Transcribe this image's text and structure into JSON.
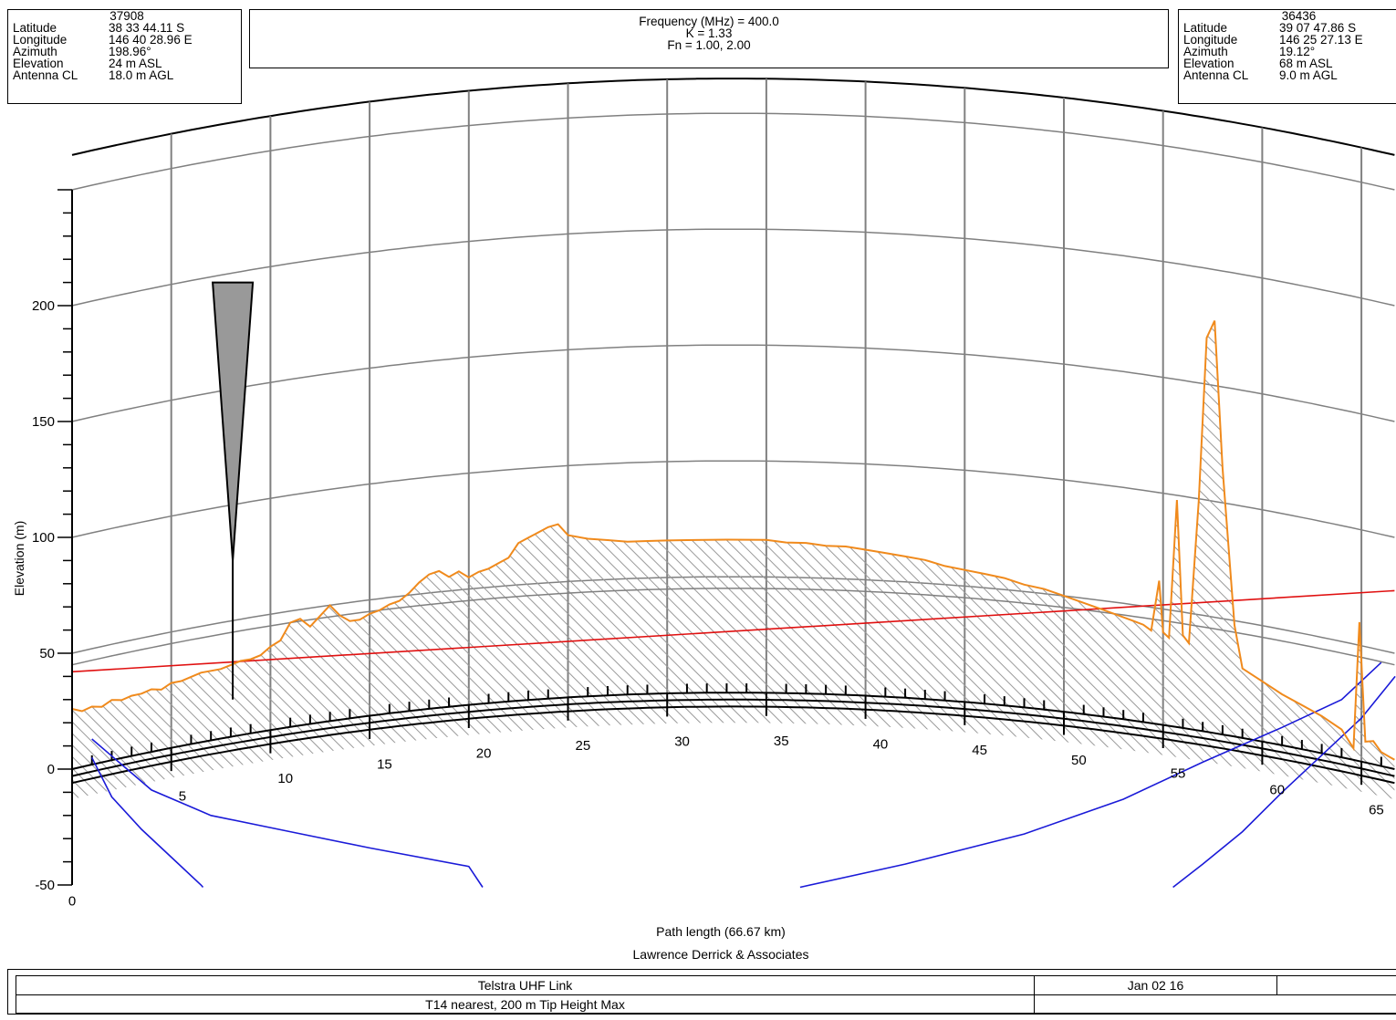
{
  "site_a": {
    "id": "37908",
    "rows": [
      {
        "label": "Latitude",
        "value": "38 33 44.11 S"
      },
      {
        "label": "Longitude",
        "value": "146 40 28.96 E"
      },
      {
        "label": "Azimuth",
        "value": "198.96°"
      },
      {
        "label": "Elevation",
        "value": "24 m ASL"
      },
      {
        "label": "Antenna CL",
        "value": "18.0 m AGL"
      }
    ]
  },
  "site_b": {
    "id": "36436",
    "rows": [
      {
        "label": "Latitude",
        "value": "39 07 47.86 S"
      },
      {
        "label": "Longitude",
        "value": "146 25 27.13 E"
      },
      {
        "label": "Azimuth",
        "value": "19.12°"
      },
      {
        "label": "Elevation",
        "value": "68 m ASL"
      },
      {
        "label": "Antenna CL",
        "value": "9.0 m AGL"
      }
    ]
  },
  "header": {
    "frequency": "Frequency (MHz) = 400.0",
    "k_factor": "K = 1.33",
    "fresnel": "Fn = 1.00, 2.00"
  },
  "footer": {
    "company": "Lawrence Derrick & Associates",
    "link_name": "Telstra UHF Link",
    "date": "Jan 02 16",
    "note": "T14 nearest, 200 m Tip Height Max"
  },
  "colors": {
    "terrain": "#f08a1c",
    "los": "#e01010",
    "fresnel": "#1a1ad8",
    "grid": "#808080",
    "antenna_fill": "#999999"
  },
  "chart_data": {
    "type": "line",
    "ylabel": "Elevation (m)",
    "xlabel": "Path length (66.67 km)",
    "x_unit": "km",
    "xlim": [
      0,
      66.67
    ],
    "ylim": [
      -50,
      250
    ],
    "y_ticks": [
      -50,
      0,
      50,
      100,
      150,
      200
    ],
    "x_ticks": [
      0,
      5,
      10,
      15,
      20,
      25,
      30,
      35,
      40,
      45,
      50,
      55,
      60,
      65
    ],
    "k_factor": 1.33,
    "earth_curvature": true,
    "fresnel_zones": [
      1.0,
      2.0
    ],
    "grid_levels": [
      0,
      50,
      100,
      150,
      200,
      250
    ],
    "los": {
      "start": [
        0,
        42
      ],
      "end": [
        66.67,
        77
      ]
    },
    "antenna_a": {
      "x": 8.1,
      "ground": 30,
      "height": 200
    },
    "series": [
      {
        "name": "Terrain",
        "x": [
          0,
          0.5,
          1,
          1.5,
          2,
          2.5,
          3,
          3.5,
          4,
          4.5,
          5,
          5.5,
          6,
          6.5,
          7,
          7.5,
          8,
          8.5,
          9,
          9.5,
          10,
          10.5,
          11,
          11.5,
          12,
          12.5,
          13,
          13.5,
          14,
          14.5,
          15,
          15.5,
          16,
          16.5,
          17,
          17.5,
          18,
          18.5,
          19,
          19.5,
          20,
          20.5,
          21,
          21.5,
          22,
          22.5,
          23,
          23.5,
          24,
          24.5,
          25,
          26,
          27,
          28,
          29,
          30,
          31,
          32,
          33,
          34,
          35,
          36,
          37,
          38,
          39,
          40,
          41,
          42,
          43,
          44,
          45,
          46,
          47,
          48,
          49,
          50,
          51,
          52,
          53,
          53.5,
          54,
          54.4,
          54.8,
          55,
          55.3,
          55.7,
          56,
          56.3,
          56.8,
          57.2,
          57.6,
          58,
          58.6,
          59,
          60,
          61,
          62,
          63,
          64,
          64.6,
          64.9,
          65.2,
          65.6,
          66,
          66.67
        ],
        "values": [
          26,
          24,
          25,
          24,
          26,
          25,
          26,
          26,
          27,
          26,
          28,
          28,
          29,
          30,
          30,
          30,
          31,
          32,
          32,
          33,
          36,
          38,
          45,
          46,
          42,
          46,
          50,
          45,
          42,
          42,
          44,
          45,
          47,
          48,
          51,
          55,
          58,
          59,
          56,
          58,
          55,
          57,
          58,
          60,
          62,
          68,
          70,
          72,
          74,
          75,
          70,
          68,
          67,
          66,
          66,
          66,
          66,
          66,
          66,
          66,
          66,
          65,
          65,
          64,
          64,
          63,
          62,
          61,
          60,
          58,
          57,
          56,
          55,
          53,
          52,
          50,
          48,
          46,
          44,
          43,
          42,
          40,
          62,
          40,
          38,
          98,
          40,
          37,
          99,
          170,
          178,
          115,
          48,
          30,
          26,
          22,
          19,
          16,
          12,
          5,
          60,
          9,
          10,
          6,
          4
        ]
      },
      {
        "name": "Earth",
        "x": [
          0,
          66.67
        ],
        "values": [
          0,
          0
        ]
      }
    ]
  }
}
